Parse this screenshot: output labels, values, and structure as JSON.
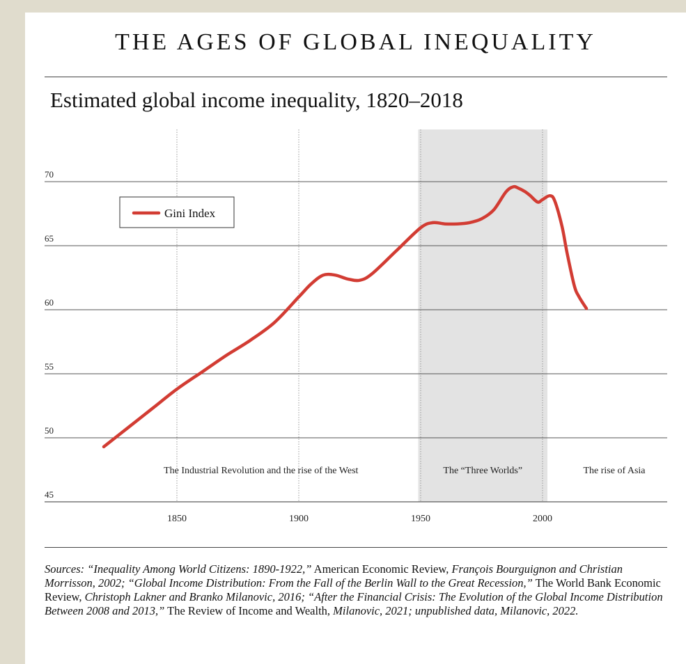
{
  "page": {
    "title": "THE AGES OF GLOBAL INEQUALITY",
    "colors": {
      "background": "#e0dccd",
      "card": "#ffffff",
      "shade": "#e3e3e3",
      "line": "#d23c33"
    }
  },
  "chart_data": {
    "type": "line",
    "title": "Estimated global income inequality, 1820–2018",
    "xlabel": "",
    "ylabel": "",
    "xlim": [
      1820,
      2070
    ],
    "ylim": [
      45,
      72
    ],
    "x_ticks": [
      1850,
      1900,
      1950,
      2000
    ],
    "y_ticks": [
      45,
      50,
      55,
      60,
      65,
      70
    ],
    "grid": true,
    "legend": {
      "position": "top-left",
      "entries": [
        "Gini Index"
      ]
    },
    "series": [
      {
        "name": "Gini Index",
        "color": "#d23c33",
        "x": [
          1820,
          1830,
          1840,
          1850,
          1860,
          1870,
          1880,
          1890,
          1900,
          1905,
          1910,
          1915,
          1920,
          1925,
          1930,
          1940,
          1950,
          1955,
          1960,
          1965,
          1970,
          1975,
          1980,
          1985,
          1988,
          1990,
          1993,
          1995,
          1998,
          2000,
          2003,
          2005,
          2008,
          2010,
          2013,
          2015,
          2018
        ],
        "values": [
          49.3,
          50.8,
          52.3,
          53.8,
          55.1,
          56.4,
          57.6,
          59.0,
          61.0,
          62.0,
          62.7,
          62.7,
          62.4,
          62.3,
          62.8,
          64.6,
          66.4,
          66.8,
          66.7,
          66.7,
          66.8,
          67.1,
          67.8,
          69.2,
          69.6,
          69.5,
          69.2,
          68.9,
          68.4,
          68.6,
          68.9,
          68.5,
          66.5,
          64.5,
          61.9,
          61.0,
          60.1
        ]
      }
    ],
    "regions": [
      {
        "label": "The Industrial Revolution and the rise of the West",
        "from": 1820,
        "to": 1949,
        "shaded": false
      },
      {
        "label": "The “Three Worlds”",
        "from": 1949,
        "to": 2002,
        "shaded": true
      },
      {
        "label": "The rise of Asia",
        "from": 2002,
        "to": 2070,
        "shaded": false
      }
    ]
  },
  "sources": {
    "p1": "Sources: “Inequality Among World Citizens: 1890-1922,”",
    "p2": " American Economic Review, ",
    "p3": "François Bourguignon and Christian Morrisson, 2002; “Global Income Distribution: From the Fall of the Berlin Wall to the Great Recession,”",
    "p4": " The World Bank Economic Review, ",
    "p5": "Christoph Lakner and Branko Milanovic, 2016; “After the Financial Crisis: The Evolution of the Global Income Distribution Between 2008 and 2013,”",
    "p6": " The Review of Income and Wealth, ",
    "p7": "Milanovic, 2021; unpublished data, Milanovic, 2022."
  }
}
